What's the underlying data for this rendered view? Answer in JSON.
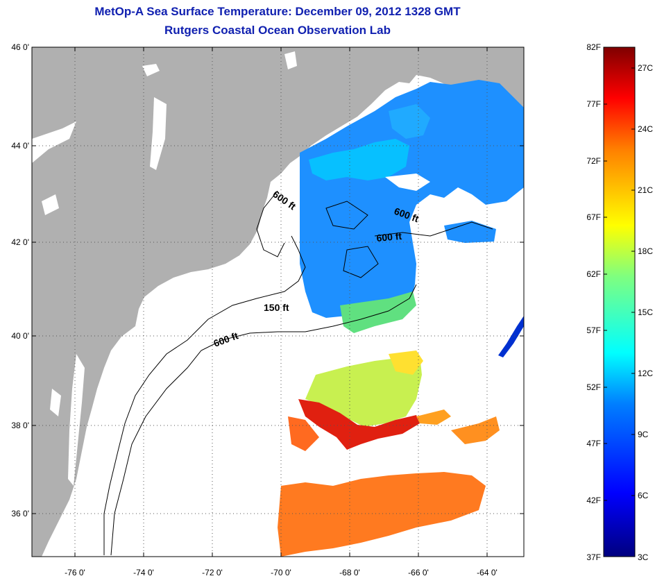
{
  "title": "MetOp-A Sea Surface Temperature:  December 09, 2012 1328 GMT",
  "subtitle": "Rutgers Coastal Ocean Observation Lab",
  "lat_labels": [
    "46 0'",
    "44 0'",
    "42 0'",
    "40 0'",
    "38 0'",
    "36 0'"
  ],
  "lon_labels": [
    "-76 0'",
    "-74 0'",
    "-72 0'",
    "-70 0'",
    "-68 0'",
    "-66 0'",
    "-64 0'"
  ],
  "contour_labels": [
    "600 ft",
    "600 ft",
    "600 ft",
    "150 ft",
    "600 ft"
  ],
  "colorbar": {
    "f_labels": [
      "82F",
      "77F",
      "72F",
      "67F",
      "62F",
      "57F",
      "52F",
      "47F",
      "42F",
      "37F"
    ],
    "c_labels": [
      "27C",
      "24C",
      "21C",
      "18C",
      "15C",
      "12C",
      "9C",
      "6C",
      "3C"
    ],
    "colors": [
      "#00007f",
      "#0000ff",
      "#007fff",
      "#00ffff",
      "#7fff7f",
      "#ffff00",
      "#ff7f00",
      "#ff0000",
      "#7f0000"
    ]
  },
  "colors": {
    "land": "#b0b0b0",
    "title": "#1020b0"
  }
}
